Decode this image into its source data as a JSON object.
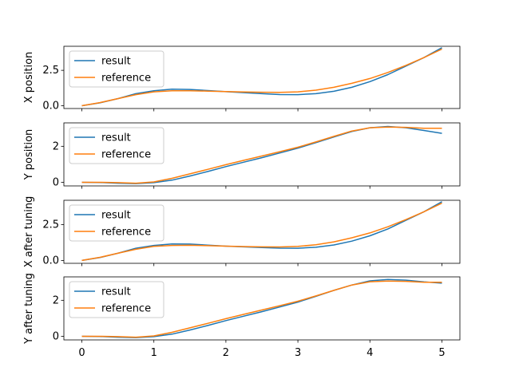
{
  "chart_data": [
    {
      "type": "line",
      "ylabel": "X position",
      "yticks": [
        0.0,
        2.5
      ],
      "ytick_labels": [
        "0.0",
        "2.5"
      ],
      "ylim": [
        -0.2,
        4.2
      ],
      "legend": {
        "placement": "upper-left",
        "entries": [
          "result",
          "reference"
        ]
      },
      "x": [
        0,
        0.25,
        0.5,
        0.75,
        1.0,
        1.25,
        1.5,
        1.75,
        2.0,
        2.25,
        2.5,
        2.75,
        3.0,
        3.25,
        3.5,
        3.75,
        4.0,
        4.25,
        4.5,
        4.75,
        5.0
      ],
      "series": [
        {
          "name": "result",
          "values": [
            0.0,
            0.2,
            0.5,
            0.85,
            1.05,
            1.17,
            1.15,
            1.07,
            0.99,
            0.92,
            0.85,
            0.79,
            0.78,
            0.85,
            1.02,
            1.3,
            1.7,
            2.2,
            2.8,
            3.4,
            4.1
          ]
        },
        {
          "name": "reference",
          "values": [
            0.0,
            0.22,
            0.5,
            0.78,
            0.98,
            1.05,
            1.06,
            1.03,
            1.0,
            0.97,
            0.95,
            0.94,
            0.98,
            1.1,
            1.3,
            1.58,
            1.92,
            2.35,
            2.85,
            3.4,
            4.0
          ]
        }
      ]
    },
    {
      "type": "line",
      "ylabel": "Y position",
      "yticks": [
        0,
        2
      ],
      "ytick_labels": [
        "0",
        "2"
      ],
      "ylim": [
        -0.2,
        3.3
      ],
      "legend": {
        "placement": "upper-left",
        "entries": [
          "result",
          "reference"
        ]
      },
      "x": [
        0,
        0.25,
        0.5,
        0.75,
        1.0,
        1.25,
        1.5,
        1.75,
        2.0,
        2.25,
        2.5,
        2.75,
        3.0,
        3.25,
        3.5,
        3.75,
        4.0,
        4.25,
        4.5,
        4.75,
        5.0
      ],
      "series": [
        {
          "name": "result",
          "values": [
            0.0,
            -0.01,
            -0.05,
            -0.07,
            -0.02,
            0.12,
            0.35,
            0.6,
            0.87,
            1.12,
            1.37,
            1.63,
            1.9,
            2.2,
            2.52,
            2.82,
            3.03,
            3.1,
            3.03,
            2.88,
            2.72
          ]
        },
        {
          "name": "reference",
          "values": [
            0.0,
            0.0,
            -0.02,
            -0.05,
            0.02,
            0.22,
            0.47,
            0.72,
            0.98,
            1.22,
            1.46,
            1.7,
            1.95,
            2.24,
            2.55,
            2.85,
            3.03,
            3.07,
            3.05,
            3.0,
            3.0
          ]
        }
      ]
    },
    {
      "type": "line",
      "ylabel": "X after tuning",
      "yticks": [
        0.0,
        2.5
      ],
      "ytick_labels": [
        "0.0",
        "2.5"
      ],
      "ylim": [
        -0.2,
        4.2
      ],
      "legend": {
        "placement": "upper-left",
        "entries": [
          "result",
          "reference"
        ]
      },
      "x": [
        0,
        0.25,
        0.5,
        0.75,
        1.0,
        1.25,
        1.5,
        1.75,
        2.0,
        2.25,
        2.5,
        2.75,
        3.0,
        3.25,
        3.5,
        3.75,
        4.0,
        4.25,
        4.5,
        4.75,
        5.0
      ],
      "series": [
        {
          "name": "result",
          "values": [
            0.0,
            0.2,
            0.5,
            0.85,
            1.05,
            1.15,
            1.14,
            1.07,
            1.0,
            0.95,
            0.9,
            0.86,
            0.85,
            0.92,
            1.08,
            1.35,
            1.72,
            2.2,
            2.8,
            3.4,
            4.1
          ]
        },
        {
          "name": "reference",
          "values": [
            0.0,
            0.22,
            0.5,
            0.78,
            0.98,
            1.05,
            1.06,
            1.03,
            1.0,
            0.97,
            0.95,
            0.94,
            0.98,
            1.1,
            1.3,
            1.58,
            1.92,
            2.35,
            2.85,
            3.4,
            4.0
          ]
        }
      ]
    },
    {
      "type": "line",
      "ylabel": "Y after tuning",
      "yticks": [
        0,
        2
      ],
      "ytick_labels": [
        "0",
        "2"
      ],
      "ylim": [
        -0.2,
        3.3
      ],
      "legend": {
        "placement": "upper-left",
        "entries": [
          "result",
          "reference"
        ]
      },
      "x": [
        0,
        0.25,
        0.5,
        0.75,
        1.0,
        1.25,
        1.5,
        1.75,
        2.0,
        2.25,
        2.5,
        2.75,
        3.0,
        3.25,
        3.5,
        3.75,
        4.0,
        4.25,
        4.5,
        4.75,
        5.0
      ],
      "xticks": [
        0,
        1,
        2,
        3,
        4,
        5
      ],
      "xtick_labels": [
        "0",
        "1",
        "2",
        "3",
        "4",
        "5"
      ],
      "series": [
        {
          "name": "result",
          "values": [
            0.0,
            -0.01,
            -0.05,
            -0.07,
            -0.02,
            0.12,
            0.35,
            0.6,
            0.87,
            1.12,
            1.37,
            1.63,
            1.9,
            2.22,
            2.55,
            2.85,
            3.08,
            3.16,
            3.12,
            3.02,
            2.95
          ]
        },
        {
          "name": "reference",
          "values": [
            0.0,
            0.0,
            -0.02,
            -0.05,
            0.02,
            0.22,
            0.47,
            0.72,
            0.98,
            1.22,
            1.46,
            1.7,
            1.95,
            2.24,
            2.55,
            2.85,
            3.03,
            3.07,
            3.05,
            3.0,
            3.0
          ]
        }
      ]
    }
  ],
  "colors": {
    "result": "#1f77b4",
    "reference": "#ff7f0e"
  }
}
